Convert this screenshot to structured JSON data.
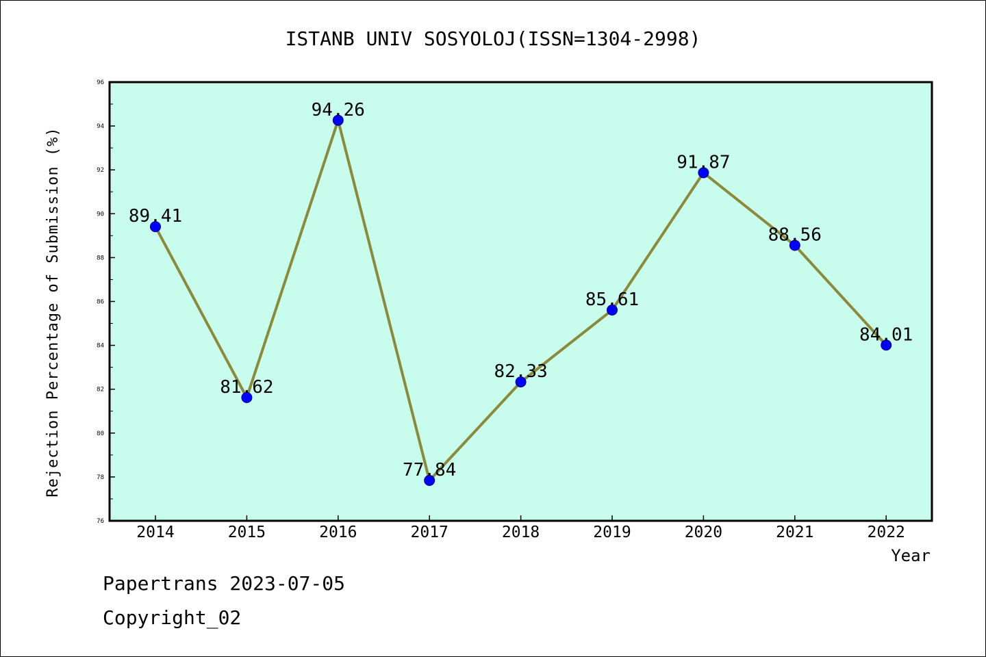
{
  "chart_data": {
    "type": "line",
    "title": "ISTANB UNIV SOSYOLOJ(ISSN=1304-2998)",
    "xlabel": "Year",
    "ylabel": "Rejection Percentage of Submission (%)",
    "categories": [
      "2014",
      "2015",
      "2016",
      "2017",
      "2018",
      "2019",
      "2020",
      "2021",
      "2022"
    ],
    "values": [
      89.41,
      81.62,
      94.26,
      77.84,
      82.33,
      85.61,
      91.87,
      88.56,
      84.01
    ],
    "value_labels": [
      "89.41",
      "81.62",
      "94.26",
      "77.84",
      "82.33",
      "85.61",
      "91.87",
      "88.56",
      "84.01"
    ],
    "ylim": [
      76,
      96
    ],
    "yticks": [
      "76",
      "78",
      "80",
      "82",
      "84",
      "86",
      "88",
      "90",
      "92",
      "94",
      "96"
    ],
    "grid": false,
    "colors": {
      "plot_background": "#c8fced",
      "line": "#8b8a3a",
      "marker": "#0000ff"
    }
  },
  "footer": {
    "line1": "Papertrans 2023-07-05",
    "line2": "Copyright_02"
  }
}
